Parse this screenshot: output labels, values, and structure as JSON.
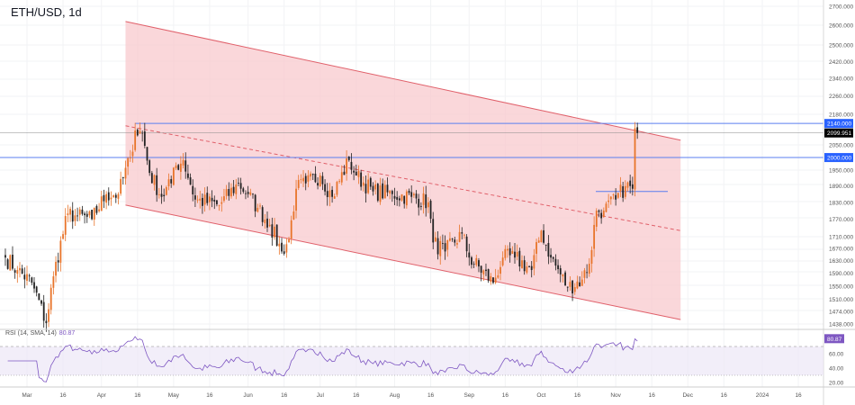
{
  "header": {
    "title": "ETH/USD, 1d"
  },
  "rsi": {
    "label": "RSI (14, SMA, 14)",
    "value": "80.87",
    "ticks": [
      "60.00",
      "40.00",
      "20.00"
    ],
    "upper_band": 70,
    "lower_band": 30
  },
  "colors": {
    "up": "#e8742a",
    "down": "#222222",
    "channel_fill": "#f8c9cd",
    "channel_line": "#e0606a",
    "hline": "#5b7ff0",
    "rsi_line": "#7e57c2",
    "rsi_fill": "#ede7f6",
    "price_tag": "#2962ff",
    "last_tag": "#000000",
    "rsi_tag": "#7e57c2"
  },
  "chart_data": {
    "type": "candlestick",
    "symbol": "ETH/USD",
    "interval": "1d",
    "y_scale": "log",
    "ylim": [
      1438,
      2700
    ],
    "y_ticks": [
      "2700.000",
      "2600.000",
      "2500.000",
      "2420.000",
      "2340.000",
      "2260.000",
      "2180.000",
      "2050.000",
      "1950.000",
      "1890.000",
      "1830.000",
      "1770.000",
      "1710.000",
      "1670.000",
      "1630.000",
      "1590.000",
      "1550.000",
      "1510.000",
      "1474.000",
      "1438.000"
    ],
    "x_ticks": [
      "Mar",
      "16",
      "Apr",
      "16",
      "May",
      "16",
      "Jun",
      "16",
      "Jul",
      "16",
      "Aug",
      "16",
      "Sep",
      "16",
      "Oct",
      "16",
      "Nov",
      "16",
      "Dec",
      "16",
      "2024",
      "16"
    ],
    "price_path": [
      [
        "2023-02-20",
        1640
      ],
      [
        "2023-02-25",
        1600
      ],
      [
        "2023-03-03",
        1560
      ],
      [
        "2023-03-09",
        1440
      ],
      [
        "2023-03-12",
        1580
      ],
      [
        "2023-03-18",
        1790
      ],
      [
        "2023-03-22",
        1780
      ],
      [
        "2023-03-28",
        1770
      ],
      [
        "2023-04-03",
        1860
      ],
      [
        "2023-04-08",
        1860
      ],
      [
        "2023-04-13",
        2000
      ],
      [
        "2023-04-15",
        2110
      ],
      [
        "2023-04-18",
        2100
      ],
      [
        "2023-04-21",
        1940
      ],
      [
        "2023-04-26",
        1850
      ],
      [
        "2023-04-30",
        1900
      ],
      [
        "2023-05-01",
        1960
      ],
      [
        "2023-05-05",
        1990
      ],
      [
        "2023-05-10",
        1840
      ],
      [
        "2023-05-20",
        1820
      ],
      [
        "2023-05-28",
        1900
      ],
      [
        "2023-06-01",
        1860
      ],
      [
        "2023-06-05",
        1810
      ],
      [
        "2023-06-10",
        1750
      ],
      [
        "2023-06-15",
        1660
      ],
      [
        "2023-06-18",
        1700
      ],
      [
        "2023-06-21",
        1880
      ],
      [
        "2023-06-25",
        1900
      ],
      [
        "2023-07-01",
        1930
      ],
      [
        "2023-07-06",
        1850
      ],
      [
        "2023-07-13",
        1990
      ],
      [
        "2023-07-16",
        1930
      ],
      [
        "2023-07-23",
        1870
      ],
      [
        "2023-07-31",
        1860
      ],
      [
        "2023-08-08",
        1850
      ],
      [
        "2023-08-15",
        1830
      ],
      [
        "2023-08-17",
        1690
      ],
      [
        "2023-08-22",
        1660
      ],
      [
        "2023-08-29",
        1720
      ],
      [
        "2023-09-01",
        1640
      ],
      [
        "2023-09-11",
        1560
      ],
      [
        "2023-09-15",
        1640
      ],
      [
        "2023-09-20",
        1640
      ],
      [
        "2023-09-27",
        1600
      ],
      [
        "2023-10-01",
        1730
      ],
      [
        "2023-10-05",
        1640
      ],
      [
        "2023-10-12",
        1545
      ],
      [
        "2023-10-18",
        1570
      ],
      [
        "2023-10-21",
        1620
      ],
      [
        "2023-10-24",
        1800
      ],
      [
        "2023-10-27",
        1800
      ],
      [
        "2023-11-01",
        1840
      ],
      [
        "2023-11-05",
        1890
      ],
      [
        "2023-11-08",
        1880
      ],
      [
        "2023-11-09",
        2120
      ],
      [
        "2023-11-10",
        2099.951
      ]
    ],
    "last_price": "2099.951",
    "horizontal_levels": [
      {
        "price": 2140,
        "label": "2140.000"
      },
      {
        "price": 2000,
        "label": "2000.000"
      },
      {
        "price": 1870,
        "label": ""
      }
    ],
    "channel": {
      "upper": [
        [
          "2023-04-11",
          2620
        ],
        [
          "2023-11-28",
          2070
        ]
      ],
      "middle": [
        [
          "2023-04-11",
          2130
        ],
        [
          "2023-11-28",
          1730
        ]
      ],
      "lower": [
        [
          "2023-04-11",
          1820
        ],
        [
          "2023-11-28",
          1450
        ]
      ]
    }
  }
}
